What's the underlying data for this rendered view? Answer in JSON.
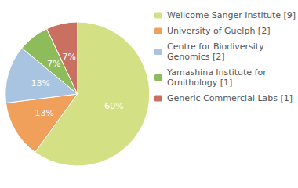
{
  "chart_data": {
    "type": "pie",
    "categories": [
      "Wellcome Sanger Institute [9]",
      "University of Guelph [2]",
      "Centre for Biodiversity\nGenomics [2]",
      "Yamashina Institute for\nOrnithology [1]",
      "Generic Commercial Labs [1]"
    ],
    "values": [
      60,
      13,
      13,
      7,
      7
    ],
    "value_labels": [
      "60%",
      "13%",
      "13%",
      "7%",
      "7%"
    ],
    "colors": [
      "#d4e084",
      "#f0a05a",
      "#a8c4e0",
      "#8fbc5a",
      "#c97060"
    ],
    "data_labels": true,
    "legend": "right"
  }
}
